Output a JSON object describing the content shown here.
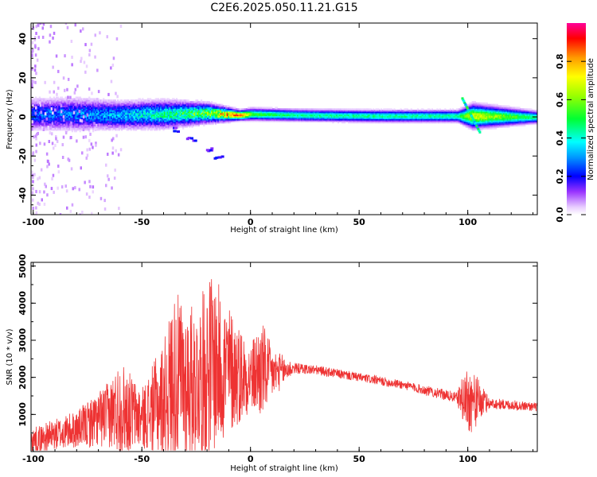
{
  "title": "C2E6.2025.050.11.21.G15",
  "chart_data": [
    {
      "type": "heatmap",
      "xlabel": "Height of straight line (km)",
      "ylabel": "Frequency (Hz)",
      "xlim": [
        -101,
        132
      ],
      "ylim": [
        -50,
        48
      ],
      "xticks": [
        -100,
        -50,
        0,
        50,
        100
      ],
      "yticks": [
        -40,
        -20,
        0,
        20,
        40
      ],
      "colorbar": {
        "label": "Normalized spectral amplitude",
        "range": [
          0,
          1
        ],
        "ticks": [
          0.0,
          0.2,
          0.4,
          0.6,
          0.8
        ]
      },
      "ridge": [
        {
          "x": -100,
          "f": 1.5,
          "width": 4.0,
          "amp": 0.25
        },
        {
          "x": -80,
          "f": 1.5,
          "width": 4.0,
          "amp": 0.28
        },
        {
          "x": -60,
          "f": 1.0,
          "width": 3.5,
          "amp": 0.32
        },
        {
          "x": -40,
          "f": 1.5,
          "width": 3.5,
          "amp": 0.42
        },
        {
          "x": -20,
          "f": 2.0,
          "width": 2.5,
          "amp": 0.55
        },
        {
          "x": -5,
          "f": 1.0,
          "width": 1.2,
          "amp": 0.9
        },
        {
          "x": 0,
          "f": 1.5,
          "width": 1.5,
          "amp": 0.55
        },
        {
          "x": 20,
          "f": 1.0,
          "width": 1.5,
          "amp": 0.45
        },
        {
          "x": 60,
          "f": 0.5,
          "width": 1.5,
          "amp": 0.45
        },
        {
          "x": 95,
          "f": 0.5,
          "width": 1.5,
          "amp": 0.45
        },
        {
          "x": 102,
          "f": 0.5,
          "width": 3.0,
          "amp": 0.7
        },
        {
          "x": 132,
          "f": 0.0,
          "width": 1.5,
          "amp": 0.45
        }
      ],
      "secondary_branch": [
        {
          "x": -35,
          "f": -6
        },
        {
          "x": -28,
          "f": -11
        },
        {
          "x": -20,
          "f": -16
        },
        {
          "x": -15,
          "f": -20
        }
      ],
      "lowamp_scatter_xrange": [
        -101,
        -60
      ]
    },
    {
      "type": "line",
      "xlabel": "Height of straight line (km)",
      "ylabel": "SNR (10 * v/v)",
      "xlim": [
        -101,
        132
      ],
      "ylim": [
        0,
        5100
      ],
      "xticks": [
        -100,
        -50,
        0,
        50,
        100
      ],
      "yticks": [
        1000,
        2000,
        3000,
        4000,
        5000
      ],
      "color": "#ee3333",
      "envelope": [
        {
          "x": -100,
          "mean": 300,
          "amp": 350
        },
        {
          "x": -80,
          "mean": 600,
          "amp": 500
        },
        {
          "x": -65,
          "mean": 1000,
          "amp": 900
        },
        {
          "x": -60,
          "mean": 1200,
          "amp": 1300
        },
        {
          "x": -50,
          "mean": 900,
          "amp": 800
        },
        {
          "x": -40,
          "mean": 1400,
          "amp": 1600
        },
        {
          "x": -35,
          "mean": 2000,
          "amp": 2300
        },
        {
          "x": -30,
          "mean": 1900,
          "amp": 2200
        },
        {
          "x": -25,
          "mean": 1900,
          "amp": 2000
        },
        {
          "x": -18,
          "mean": 2400,
          "amp": 2500
        },
        {
          "x": -10,
          "mean": 2200,
          "amp": 1800
        },
        {
          "x": 0,
          "mean": 2000,
          "amp": 900
        },
        {
          "x": 5,
          "mean": 2200,
          "amp": 1400
        },
        {
          "x": 10,
          "mean": 2100,
          "amp": 700
        },
        {
          "x": 20,
          "mean": 2250,
          "amp": 150
        },
        {
          "x": 30,
          "mean": 2200,
          "amp": 130
        },
        {
          "x": 50,
          "mean": 2000,
          "amp": 120
        },
        {
          "x": 70,
          "mean": 1800,
          "amp": 120
        },
        {
          "x": 95,
          "mean": 1450,
          "amp": 150
        },
        {
          "x": 100,
          "mean": 1400,
          "amp": 1000
        },
        {
          "x": 105,
          "mean": 1350,
          "amp": 600
        },
        {
          "x": 110,
          "mean": 1300,
          "amp": 150
        },
        {
          "x": 132,
          "mean": 1200,
          "amp": 120
        }
      ]
    }
  ]
}
